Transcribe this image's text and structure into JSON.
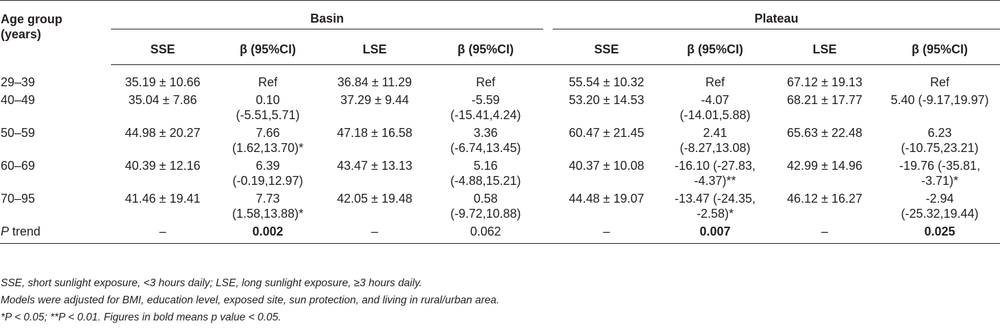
{
  "table": {
    "age_header": [
      "Age group",
      "(years)"
    ],
    "groups": [
      "Basin",
      "Plateau"
    ],
    "subheaders": [
      "SSE",
      "β (95%CI)",
      "LSE",
      "β (95%CI)",
      "SSE",
      "β (95%CI)",
      "LSE",
      "β (95%CI)"
    ],
    "rows": [
      {
        "age": "29–39",
        "cells": [
          [
            "35.19 ± 10.66"
          ],
          [
            "Ref"
          ],
          [
            "36.84 ± 11.29"
          ],
          [
            "Ref"
          ],
          [
            "55.54 ± 10.32"
          ],
          [
            "Ref"
          ],
          [
            "67.12 ± 19.13"
          ],
          [
            "Ref"
          ]
        ]
      },
      {
        "age": "40–49",
        "cells": [
          [
            "35.04 ± 7.86"
          ],
          [
            "0.10",
            "(-5.51,5.71)"
          ],
          [
            "37.29 ± 9.44"
          ],
          [
            "-5.59",
            "(-15.41,4.24)"
          ],
          [
            "53.20 ± 14.53"
          ],
          [
            "-4.07",
            "(-14.01,5.88)"
          ],
          [
            "68.21 ± 17.77"
          ],
          [
            "5.40 (-9.17,19.97)"
          ]
        ]
      },
      {
        "age": "50–59",
        "cells": [
          [
            "44.98 ± 20.27"
          ],
          [
            "7.66",
            "(1.62,13.70)*"
          ],
          [
            "47.18 ± 16.58"
          ],
          [
            "3.36",
            "(-6.74,13.45)"
          ],
          [
            "60.47 ± 21.45"
          ],
          [
            "2.41",
            "(-8.27,13.08)"
          ],
          [
            "65.63 ± 22.48"
          ],
          [
            "6.23",
            "(-10.75,23.21)"
          ]
        ]
      },
      {
        "age": "60–69",
        "cells": [
          [
            "40.39 ± 12.16"
          ],
          [
            "6.39",
            "(-0.19,12.97)"
          ],
          [
            "43.47 ± 13.13"
          ],
          [
            "5.16",
            "(-4.88,15.21)"
          ],
          [
            "40.37 ± 10.08"
          ],
          [
            "-16.10 (-27.83,",
            "-4.37)**"
          ],
          [
            "42.99 ± 14.96"
          ],
          [
            "-19.76 (-35.81,",
            "-3.71)*"
          ]
        ]
      },
      {
        "age": "70–95",
        "cells": [
          [
            "41.46 ± 19.41"
          ],
          [
            "7.73",
            "(1.58,13.88)*"
          ],
          [
            "42.05 ± 19.48"
          ],
          [
            "0.58",
            "(-9.72,10.88)"
          ],
          [
            "44.48 ± 19.07"
          ],
          [
            "-13.47 (-24.35,",
            "-2.58)*"
          ],
          [
            "46.12 ± 16.27"
          ],
          [
            "-2.94",
            "(-25.32,19.44)"
          ]
        ]
      }
    ],
    "trend": {
      "label_italic": "P",
      "label_rest": " trend",
      "cells": [
        "–",
        "0.002",
        "–",
        "0.062",
        "–",
        "0.007",
        "–",
        "0.025"
      ],
      "bold": [
        false,
        true,
        false,
        false,
        false,
        true,
        false,
        true
      ]
    }
  },
  "notes": [
    "SSE, short sunlight exposure, <3 hours daily; LSE, long sunlight exposure, ≥3 hours daily.",
    "Models were adjusted for BMI, education level, exposed site, sun protection, and living in rural/urban area.",
    "*P < 0.05; **P < 0.01. Figures in bold means p value < 0.05."
  ]
}
